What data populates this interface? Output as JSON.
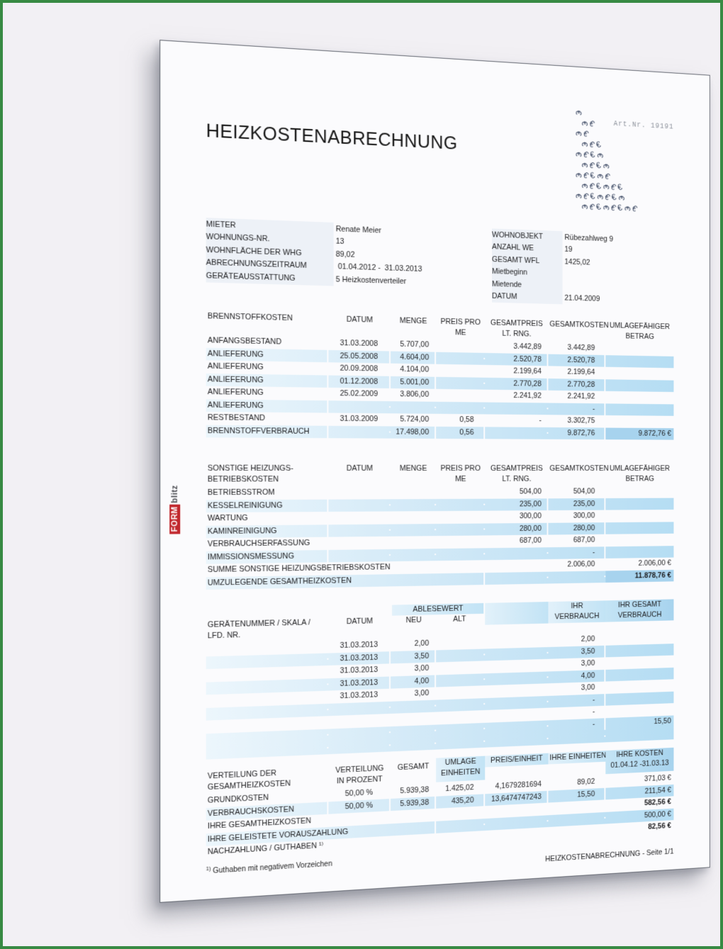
{
  "colors": {
    "frame_green": "#378a43",
    "background": "#f2f0f4",
    "band_blue": "#b5ddf3",
    "band_strong": "#a7d3ee",
    "brand_red": "#c1272d",
    "euro_navy": "#2e3c58"
  },
  "page": {
    "title": "HEIZKOSTENABRECHNUNG",
    "art_nr": "Art.Nr. 19191",
    "brand": {
      "form": "FORM",
      "blitz": "blitz"
    },
    "watermark": {
      "glyph": "€",
      "rows": [
        1,
        2,
        2,
        3,
        4,
        4,
        5,
        6,
        7,
        8
      ]
    },
    "info_left": [
      {
        "label": "MIETER",
        "value": "Renate Meier"
      },
      {
        "label": "WOHNUNGS-NR.",
        "value": "13"
      },
      {
        "label": "WOHNFLÄCHE DER WHG",
        "value": "89,02"
      },
      {
        "label": "ABRECHNUNGSZEITRAUM",
        "value": " 01.04.2012 -  31.03.2013"
      },
      {
        "label": "GERÄTEAUSSTATTUNG",
        "value": "5 Heizkostenverteiler"
      }
    ],
    "info_right": [
      {
        "label": "WOHNOBJEKT",
        "value": "Rübezahlweg 9"
      },
      {
        "label": "ANZAHL WE",
        "value": "19"
      },
      {
        "label": "GESAMT WFL",
        "value": "1425,02"
      },
      {
        "label": "Mietbeginn",
        "value": ""
      },
      {
        "label": "Mietende",
        "value": ""
      },
      {
        "label": "DATUM",
        "value": "21.04.2009"
      }
    ],
    "t1": {
      "head": {
        "c1": "BRENNSTOFFKOSTEN",
        "c2": "DATUM",
        "c3": "MENGE",
        "c4a": "PREIS PRO",
        "c4b": "ME",
        "c5a": "GESAMTPREIS",
        "c5b": "LT. RNG.",
        "c6": "GESAMTKOSTEN",
        "c7a": "UMLAGEFÄHIGER",
        "c7b": "BETRAG"
      },
      "rows": [
        {
          "c": [
            "ANFANGSBESTAND",
            "31.03.2008",
            "5.707,00",
            "",
            "3.442,89",
            "3.442,89",
            ""
          ]
        },
        {
          "c": [
            "ANLIEFERUNG",
            "25.05.2008",
            "4.604,00",
            "",
            "2.520,78",
            "2.520,78",
            ""
          ],
          "s": 1
        },
        {
          "c": [
            "ANLIEFERUNG",
            "20.09.2008",
            "4.104,00",
            "",
            "2.199,64",
            "2.199,64",
            ""
          ]
        },
        {
          "c": [
            "ANLIEFERUNG",
            "01.12.2008",
            "5.001,00",
            "",
            "2.770,28",
            "2.770,28",
            ""
          ],
          "s": 1
        },
        {
          "c": [
            "ANLIEFERUNG",
            "25.02.2009",
            "3.806,00",
            "",
            "2.241,92",
            "2.241,92",
            ""
          ]
        },
        {
          "c": [
            "ANLIEFERUNG",
            "",
            "",
            "",
            "",
            "-",
            ""
          ],
          "s": 1
        },
        {
          "c": [
            "RESTBESTAND",
            "31.03.2009",
            "5.724,00",
            "0,58",
            "-",
            "3.302,75",
            ""
          ]
        },
        {
          "c": [
            "BRENNSTOFFVERBRAUCH",
            "",
            "17.498,00",
            "0,56",
            "",
            "9.872,76",
            "9.872,76 €"
          ],
          "s": 1,
          "strong": [
            6
          ]
        }
      ]
    },
    "t2": {
      "head": {
        "c1a": "SONSTIGE HEIZUNGS-",
        "c1b": "BETRIEBSKOSTEN",
        "c2": "DATUM",
        "c3": "MENGE",
        "c4a": "PREIS PRO",
        "c4b": "ME",
        "c5a": "GESAMTPREIS",
        "c5b": "LT. RNG.",
        "c6": "GESAMTKOSTEN",
        "c7a": "UMLAGEFÄHIGER",
        "c7b": "BETRAG"
      },
      "rows": [
        {
          "c": [
            "BETRIEBSSTROM",
            "",
            "",
            "",
            "504,00",
            "504,00",
            ""
          ]
        },
        {
          "c": [
            "KESSELREINIGUNG",
            "",
            "",
            "",
            "235,00",
            "235,00",
            ""
          ],
          "s": 1
        },
        {
          "c": [
            "WARTUNG",
            "",
            "",
            "",
            "300,00",
            "300,00",
            ""
          ]
        },
        {
          "c": [
            "KAMINREINIGUNG",
            "",
            "",
            "",
            "280,00",
            "280,00",
            ""
          ],
          "s": 1
        },
        {
          "c": [
            "VERBRAUCHSERFASSUNG",
            "",
            "",
            "",
            "687,00",
            "687,00",
            ""
          ]
        },
        {
          "c": [
            "IMMISSIONSMESSUNG",
            "",
            "",
            "",
            "",
            "-",
            ""
          ],
          "s": 1
        },
        {
          "c": [
            "SUMME SONSTIGE HEIZUNGSBETRIEBSKOSTEN",
            "",
            "2.006,00",
            "2.006,00 €"
          ],
          "span": 4
        },
        {
          "c": [
            "UMZULEGENDE GESAMTHEIZKOSTEN",
            "",
            "",
            "11.878,76 €"
          ],
          "span": 4,
          "s": 1,
          "bold": [
            3
          ],
          "strong": [
            3
          ]
        }
      ]
    },
    "t3": {
      "head": {
        "c1a": "GERÄTENUMMER / SKALA /",
        "c1b": "LFD. NR.",
        "c2": "DATUM",
        "c34": "ABLESEWERT",
        "c3b": "NEU",
        "c4b": "ALT",
        "c6a": "IHR",
        "c6b": "VERBRAUCH",
        "c7a": "IHR GESAMT",
        "c7b": "VERBRAUCH"
      },
      "rows": [
        {
          "c": [
            "",
            "31.03.2013",
            "2,00",
            "",
            "",
            "2,00",
            ""
          ]
        },
        {
          "c": [
            "",
            "31.03.2013",
            "3,50",
            "",
            "",
            "3,50",
            ""
          ],
          "s": 1
        },
        {
          "c": [
            "",
            "31.03.2013",
            "3,00",
            "",
            "",
            "3,00",
            ""
          ]
        },
        {
          "c": [
            "",
            "31.03.2013",
            "4,00",
            "",
            "",
            "4,00",
            ""
          ],
          "s": 1
        },
        {
          "c": [
            "",
            "31.03.2013",
            "3,00",
            "",
            "",
            "3,00",
            ""
          ]
        },
        {
          "c": [
            "",
            "",
            "",
            "",
            "",
            "-",
            ""
          ],
          "s": 1
        },
        {
          "c": [
            "",
            "",
            "",
            "",
            "",
            "-",
            ""
          ]
        },
        {
          "c": [
            "",
            "",
            "",
            "",
            "",
            "-",
            "15,50"
          ],
          "s": 1
        },
        {
          "c": [
            "",
            "",
            "",
            "",
            "",
            "",
            ""
          ],
          "s": 1
        }
      ]
    },
    "t4": {
      "head": {
        "c1a": "VERTEILUNG DER",
        "c1b": "GESAMTHEIZKOSTEN",
        "c2a": "VERTEILUNG",
        "c2b": "IN PROZENT",
        "c3": "GESAMT",
        "c4a": "UMLAGE",
        "c4b": "EINHEITEN",
        "c5": "PREIS/EINHEIT",
        "c6": "IHRE EINHEITEN",
        "c7a": "IHRE KOSTEN",
        "c7b": "01.04.12 -31.03.13"
      },
      "rows": [
        {
          "c": [
            "GRUNDKOSTEN",
            "50,00 %",
            "5.939,38",
            "1.425,02",
            "4,1679281694",
            "89,02",
            "371,03 €"
          ]
        },
        {
          "c": [
            "VERBRAUCHSKOSTEN",
            "50,00 %",
            "5.939,38",
            "435,20",
            "13,6474747243",
            "15,50",
            "211,54 €"
          ],
          "s": 1
        },
        {
          "c": [
            "IHRE GESAMTHEIZKOSTEN",
            "",
            "",
            "",
            "582,56 €"
          ],
          "span": 3,
          "bold": [
            4
          ]
        },
        {
          "c": [
            "IHRE GELEISTETE VORAUSZAHLUNG",
            "",
            "",
            "",
            "500,00 €"
          ],
          "span": 3,
          "s": 1
        },
        {
          "c": [
            "NACHZAHLUNG / GUTHABEN ¹⁾",
            "",
            "",
            "",
            "82,56 €"
          ],
          "span": 3,
          "bold": [
            4
          ]
        }
      ]
    },
    "footnote_marker": "1)",
    "footnote": "Guthaben mit negativem Vorzeichen",
    "footer": "HEIZKOSTENABRECHNUNG - Seite 1/1"
  }
}
